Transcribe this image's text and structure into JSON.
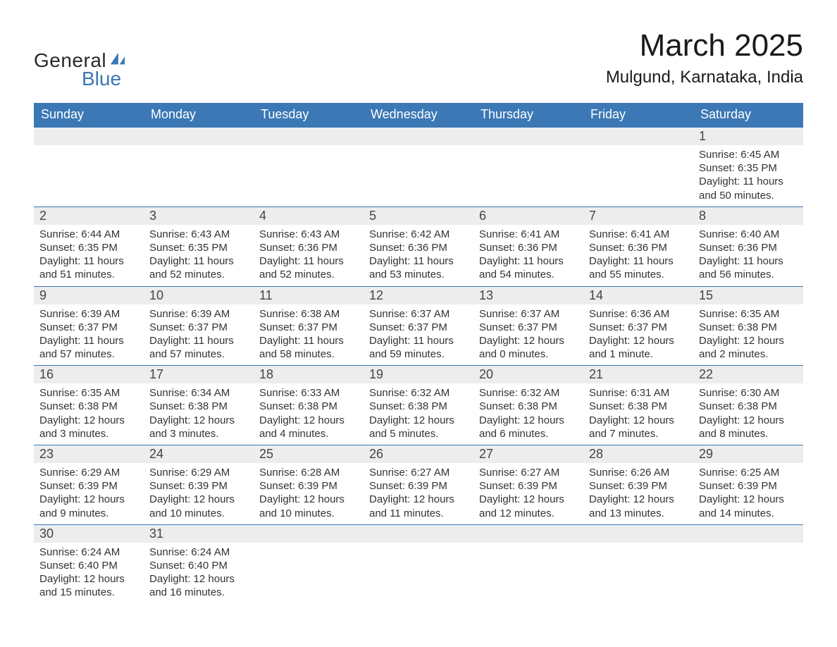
{
  "brand": {
    "general": "General",
    "blue": "Blue",
    "sail_color": "#3b78b5"
  },
  "title": {
    "month": "March 2025",
    "location": "Mulgund, Karnataka, India"
  },
  "style": {
    "header_bg": "#3b78b5",
    "header_text": "#ffffff",
    "daynum_bg": "#ededed",
    "text_color": "#333333",
    "divider_color": "#3b78b5",
    "page_bg": "#ffffff",
    "month_fontsize": 44,
    "location_fontsize": 24,
    "weekday_fontsize": 18,
    "body_fontsize": 15
  },
  "weekdays": [
    "Sunday",
    "Monday",
    "Tuesday",
    "Wednesday",
    "Thursday",
    "Friday",
    "Saturday"
  ],
  "leading_blanks": 6,
  "days": [
    {
      "n": "1",
      "sunrise": "Sunrise: 6:45 AM",
      "sunset": "Sunset: 6:35 PM",
      "daylight1": "Daylight: 11 hours",
      "daylight2": "and 50 minutes."
    },
    {
      "n": "2",
      "sunrise": "Sunrise: 6:44 AM",
      "sunset": "Sunset: 6:35 PM",
      "daylight1": "Daylight: 11 hours",
      "daylight2": "and 51 minutes."
    },
    {
      "n": "3",
      "sunrise": "Sunrise: 6:43 AM",
      "sunset": "Sunset: 6:35 PM",
      "daylight1": "Daylight: 11 hours",
      "daylight2": "and 52 minutes."
    },
    {
      "n": "4",
      "sunrise": "Sunrise: 6:43 AM",
      "sunset": "Sunset: 6:36 PM",
      "daylight1": "Daylight: 11 hours",
      "daylight2": "and 52 minutes."
    },
    {
      "n": "5",
      "sunrise": "Sunrise: 6:42 AM",
      "sunset": "Sunset: 6:36 PM",
      "daylight1": "Daylight: 11 hours",
      "daylight2": "and 53 minutes."
    },
    {
      "n": "6",
      "sunrise": "Sunrise: 6:41 AM",
      "sunset": "Sunset: 6:36 PM",
      "daylight1": "Daylight: 11 hours",
      "daylight2": "and 54 minutes."
    },
    {
      "n": "7",
      "sunrise": "Sunrise: 6:41 AM",
      "sunset": "Sunset: 6:36 PM",
      "daylight1": "Daylight: 11 hours",
      "daylight2": "and 55 minutes."
    },
    {
      "n": "8",
      "sunrise": "Sunrise: 6:40 AM",
      "sunset": "Sunset: 6:36 PM",
      "daylight1": "Daylight: 11 hours",
      "daylight2": "and 56 minutes."
    },
    {
      "n": "9",
      "sunrise": "Sunrise: 6:39 AM",
      "sunset": "Sunset: 6:37 PM",
      "daylight1": "Daylight: 11 hours",
      "daylight2": "and 57 minutes."
    },
    {
      "n": "10",
      "sunrise": "Sunrise: 6:39 AM",
      "sunset": "Sunset: 6:37 PM",
      "daylight1": "Daylight: 11 hours",
      "daylight2": "and 57 minutes."
    },
    {
      "n": "11",
      "sunrise": "Sunrise: 6:38 AM",
      "sunset": "Sunset: 6:37 PM",
      "daylight1": "Daylight: 11 hours",
      "daylight2": "and 58 minutes."
    },
    {
      "n": "12",
      "sunrise": "Sunrise: 6:37 AM",
      "sunset": "Sunset: 6:37 PM",
      "daylight1": "Daylight: 11 hours",
      "daylight2": "and 59 minutes."
    },
    {
      "n": "13",
      "sunrise": "Sunrise: 6:37 AM",
      "sunset": "Sunset: 6:37 PM",
      "daylight1": "Daylight: 12 hours",
      "daylight2": "and 0 minutes."
    },
    {
      "n": "14",
      "sunrise": "Sunrise: 6:36 AM",
      "sunset": "Sunset: 6:37 PM",
      "daylight1": "Daylight: 12 hours",
      "daylight2": "and 1 minute."
    },
    {
      "n": "15",
      "sunrise": "Sunrise: 6:35 AM",
      "sunset": "Sunset: 6:38 PM",
      "daylight1": "Daylight: 12 hours",
      "daylight2": "and 2 minutes."
    },
    {
      "n": "16",
      "sunrise": "Sunrise: 6:35 AM",
      "sunset": "Sunset: 6:38 PM",
      "daylight1": "Daylight: 12 hours",
      "daylight2": "and 3 minutes."
    },
    {
      "n": "17",
      "sunrise": "Sunrise: 6:34 AM",
      "sunset": "Sunset: 6:38 PM",
      "daylight1": "Daylight: 12 hours",
      "daylight2": "and 3 minutes."
    },
    {
      "n": "18",
      "sunrise": "Sunrise: 6:33 AM",
      "sunset": "Sunset: 6:38 PM",
      "daylight1": "Daylight: 12 hours",
      "daylight2": "and 4 minutes."
    },
    {
      "n": "19",
      "sunrise": "Sunrise: 6:32 AM",
      "sunset": "Sunset: 6:38 PM",
      "daylight1": "Daylight: 12 hours",
      "daylight2": "and 5 minutes."
    },
    {
      "n": "20",
      "sunrise": "Sunrise: 6:32 AM",
      "sunset": "Sunset: 6:38 PM",
      "daylight1": "Daylight: 12 hours",
      "daylight2": "and 6 minutes."
    },
    {
      "n": "21",
      "sunrise": "Sunrise: 6:31 AM",
      "sunset": "Sunset: 6:38 PM",
      "daylight1": "Daylight: 12 hours",
      "daylight2": "and 7 minutes."
    },
    {
      "n": "22",
      "sunrise": "Sunrise: 6:30 AM",
      "sunset": "Sunset: 6:38 PM",
      "daylight1": "Daylight: 12 hours",
      "daylight2": "and 8 minutes."
    },
    {
      "n": "23",
      "sunrise": "Sunrise: 6:29 AM",
      "sunset": "Sunset: 6:39 PM",
      "daylight1": "Daylight: 12 hours",
      "daylight2": "and 9 minutes."
    },
    {
      "n": "24",
      "sunrise": "Sunrise: 6:29 AM",
      "sunset": "Sunset: 6:39 PM",
      "daylight1": "Daylight: 12 hours",
      "daylight2": "and 10 minutes."
    },
    {
      "n": "25",
      "sunrise": "Sunrise: 6:28 AM",
      "sunset": "Sunset: 6:39 PM",
      "daylight1": "Daylight: 12 hours",
      "daylight2": "and 10 minutes."
    },
    {
      "n": "26",
      "sunrise": "Sunrise: 6:27 AM",
      "sunset": "Sunset: 6:39 PM",
      "daylight1": "Daylight: 12 hours",
      "daylight2": "and 11 minutes."
    },
    {
      "n": "27",
      "sunrise": "Sunrise: 6:27 AM",
      "sunset": "Sunset: 6:39 PM",
      "daylight1": "Daylight: 12 hours",
      "daylight2": "and 12 minutes."
    },
    {
      "n": "28",
      "sunrise": "Sunrise: 6:26 AM",
      "sunset": "Sunset: 6:39 PM",
      "daylight1": "Daylight: 12 hours",
      "daylight2": "and 13 minutes."
    },
    {
      "n": "29",
      "sunrise": "Sunrise: 6:25 AM",
      "sunset": "Sunset: 6:39 PM",
      "daylight1": "Daylight: 12 hours",
      "daylight2": "and 14 minutes."
    },
    {
      "n": "30",
      "sunrise": "Sunrise: 6:24 AM",
      "sunset": "Sunset: 6:40 PM",
      "daylight1": "Daylight: 12 hours",
      "daylight2": "and 15 minutes."
    },
    {
      "n": "31",
      "sunrise": "Sunrise: 6:24 AM",
      "sunset": "Sunset: 6:40 PM",
      "daylight1": "Daylight: 12 hours",
      "daylight2": "and 16 minutes."
    }
  ]
}
